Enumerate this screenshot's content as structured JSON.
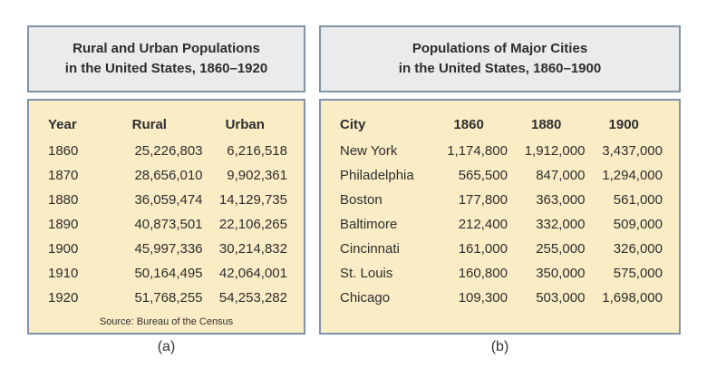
{
  "colors": {
    "border": "#8093A7",
    "header_bg": "#E9EBEC",
    "body_bg": "#FAECC5",
    "text": "#2E2E2E"
  },
  "panels": {
    "a": {
      "title_line1": "Rural and Urban Populations",
      "title_line2": "in the United States, 1860–1920",
      "source": "Source: Bureau of the Census",
      "caption": "(a)"
    },
    "b": {
      "title_line1": "Populations of Major Cities",
      "title_line2": "in the United States, 1860–1900",
      "caption": "(b)"
    }
  },
  "chart_data": [
    {
      "type": "table",
      "title": "Rural and Urban Populations in the United States, 1860–1920",
      "columns": [
        "Year",
        "Rural",
        "Urban"
      ],
      "rows": [
        [
          "1860",
          "25,226,803",
          "6,216,518"
        ],
        [
          "1870",
          "28,656,010",
          "9,902,361"
        ],
        [
          "1880",
          "36,059,474",
          "14,129,735"
        ],
        [
          "1890",
          "40,873,501",
          "22,106,265"
        ],
        [
          "1900",
          "45,997,336",
          "30,214,832"
        ],
        [
          "1910",
          "50,164,495",
          "42,064,001"
        ],
        [
          "1920",
          "51,768,255",
          "54,253,282"
        ]
      ],
      "source": "Source: Bureau of the Census"
    },
    {
      "type": "table",
      "title": "Populations of Major Cities in the United States, 1860–1900",
      "columns": [
        "City",
        "1860",
        "1880",
        "1900"
      ],
      "rows": [
        [
          "New York",
          "1,174,800",
          "1,912,000",
          "3,437,000"
        ],
        [
          "Philadelphia",
          "565,500",
          "847,000",
          "1,294,000"
        ],
        [
          "Boston",
          "177,800",
          "363,000",
          "561,000"
        ],
        [
          "Baltimore",
          "212,400",
          "332,000",
          "509,000"
        ],
        [
          "Cincinnati",
          "161,000",
          "255,000",
          "326,000"
        ],
        [
          "St. Louis",
          "160,800",
          "350,000",
          "575,000"
        ],
        [
          "Chicago",
          "109,300",
          "503,000",
          "1,698,000"
        ]
      ]
    }
  ]
}
